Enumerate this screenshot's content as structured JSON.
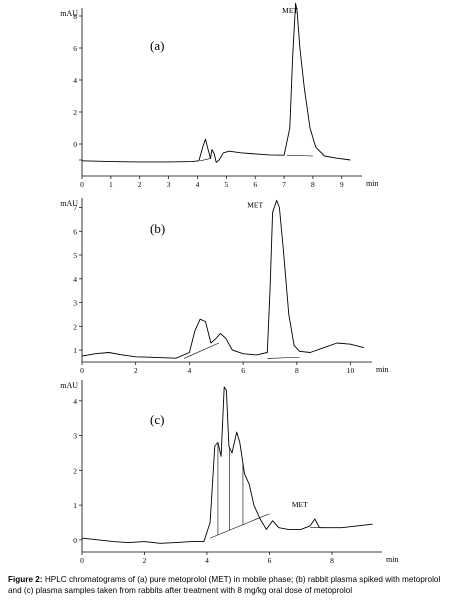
{
  "chart_data": [
    {
      "type": "line",
      "panel_label": "(a)",
      "ylabel": "mAU",
      "xlabel": "min",
      "xlim": [
        0,
        9.7
      ],
      "ylim": [
        -2,
        8.5
      ],
      "x_ticks": [
        0,
        1,
        2,
        3,
        4,
        5,
        6,
        7,
        8,
        9
      ],
      "y_ticks": [
        -1,
        0,
        2,
        4,
        6,
        8
      ],
      "y_tick_labels": [
        "",
        "0",
        "2",
        "4",
        "6",
        "8"
      ],
      "annotations": [
        {
          "text": "MET",
          "x": 7.35,
          "y": 8.2
        }
      ],
      "series": [
        {
          "x": [
            0,
            1,
            2,
            3,
            3.8,
            4.05,
            4.2,
            4.28,
            4.36,
            4.45,
            4.5,
            4.58,
            4.65,
            4.75,
            4.9,
            5.1,
            5.5,
            6.0,
            6.5,
            7.0,
            7.2,
            7.3,
            7.4,
            7.45,
            7.55,
            7.7,
            7.9,
            8.1,
            8.4,
            8.8,
            9.3
          ],
          "y": [
            -1.05,
            -1.1,
            -1.12,
            -1.12,
            -1.1,
            -1.05,
            -0.1,
            0.3,
            -0.3,
            -0.9,
            -0.35,
            -0.6,
            -1.15,
            -1.0,
            -0.55,
            -0.45,
            -0.55,
            -0.62,
            -0.68,
            -0.7,
            1.0,
            5.5,
            8.8,
            8.3,
            6.0,
            3.5,
            1.0,
            -0.2,
            -0.75,
            -0.88,
            -1.0
          ]
        }
      ],
      "baselines": [
        {
          "x": [
            4.1,
            4.45
          ],
          "y": [
            -1.05,
            -0.9
          ]
        },
        {
          "x": [
            7.1,
            8.0
          ],
          "y": [
            -0.7,
            -0.75
          ]
        }
      ]
    },
    {
      "type": "line",
      "panel_label": "(b)",
      "ylabel": "mAU",
      "xlabel": "min",
      "xlim": [
        0,
        10.8
      ],
      "ylim": [
        0.5,
        7.4
      ],
      "x_ticks": [
        0,
        2,
        4,
        6,
        8,
        10
      ],
      "y_ticks": [
        1,
        2,
        3,
        4,
        5,
        6,
        7
      ],
      "y_tick_labels": [
        "1",
        "2",
        "3",
        "4",
        "5",
        "6",
        "7"
      ],
      "annotations": [
        {
          "text": "MET",
          "x": 6.6,
          "y": 7.0
        }
      ],
      "series": [
        {
          "x": [
            0,
            0.5,
            1,
            1.5,
            2,
            2.5,
            3,
            3.5,
            4,
            4.2,
            4.4,
            4.6,
            4.8,
            5.0,
            5.15,
            5.35,
            5.6,
            6,
            6.5,
            6.9,
            7.0,
            7.1,
            7.25,
            7.35,
            7.5,
            7.7,
            7.9,
            8.1,
            8.5,
            9,
            9.5,
            10,
            10.5
          ],
          "y": [
            0.75,
            0.85,
            0.9,
            0.8,
            0.72,
            0.7,
            0.68,
            0.66,
            0.9,
            1.8,
            2.3,
            2.2,
            1.3,
            1.5,
            1.7,
            1.5,
            1.0,
            0.85,
            0.8,
            0.9,
            3.5,
            6.8,
            7.3,
            7.0,
            5.2,
            2.5,
            1.2,
            0.95,
            0.9,
            1.1,
            1.3,
            1.25,
            1.1
          ]
        }
      ],
      "baselines": [
        {
          "x": [
            3.8,
            5.1
          ],
          "y": [
            0.65,
            1.3
          ]
        },
        {
          "x": [
            6.9,
            8.1
          ],
          "y": [
            0.65,
            0.7
          ]
        }
      ]
    },
    {
      "type": "line",
      "panel_label": "(c)",
      "ylabel": "mAU",
      "xlabel": "min",
      "xlim": [
        0,
        9.6
      ],
      "ylim": [
        -0.35,
        4.6
      ],
      "x_ticks": [
        0,
        2,
        4,
        6,
        8
      ],
      "y_ticks": [
        0,
        1,
        2,
        3,
        4
      ],
      "y_tick_labels": [
        "0",
        "1",
        "2",
        "3",
        "4"
      ],
      "annotations": [
        {
          "text": "MET",
          "x": 7.1,
          "y": 0.95
        }
      ],
      "series": [
        {
          "x": [
            0,
            0.5,
            1,
            1.5,
            2,
            2.5,
            3,
            3.5,
            3.9,
            4.1,
            4.25,
            4.35,
            4.45,
            4.55,
            4.62,
            4.7,
            4.8,
            4.95,
            5.05,
            5.2,
            5.35,
            5.5,
            5.7,
            5.9,
            6.1,
            6.3,
            6.6,
            7.0,
            7.3,
            7.45,
            7.6,
            7.9,
            8.3,
            8.8,
            9.3
          ],
          "y": [
            0.05,
            0.0,
            -0.05,
            -0.08,
            -0.05,
            -0.1,
            -0.08,
            -0.05,
            -0.05,
            0.5,
            2.7,
            2.8,
            2.4,
            4.4,
            4.3,
            2.7,
            2.5,
            3.1,
            2.8,
            1.9,
            1.6,
            1.0,
            0.6,
            0.3,
            0.55,
            0.35,
            0.3,
            0.3,
            0.4,
            0.6,
            0.35,
            0.35,
            0.35,
            0.4,
            0.45
          ]
        }
      ],
      "baselines": [
        {
          "x": [
            4.1,
            6.0
          ],
          "y": [
            0.05,
            0.75
          ]
        },
        {
          "x": [
            7.3,
            7.8
          ],
          "y": [
            0.35,
            0.35
          ]
        }
      ],
      "drop_lines": [
        4.35,
        4.72,
        5.15
      ]
    }
  ],
  "caption": {
    "label": "Figure 2:",
    "text": " HPLC chromatograms of (a) pure metoprolol (MET) in mobile phase; (b) rabbit plasma spiked with metoprolol and (c) plasma samples taken from rabbits after treatment with 8 mg/kg oral dose of metoprolol"
  }
}
